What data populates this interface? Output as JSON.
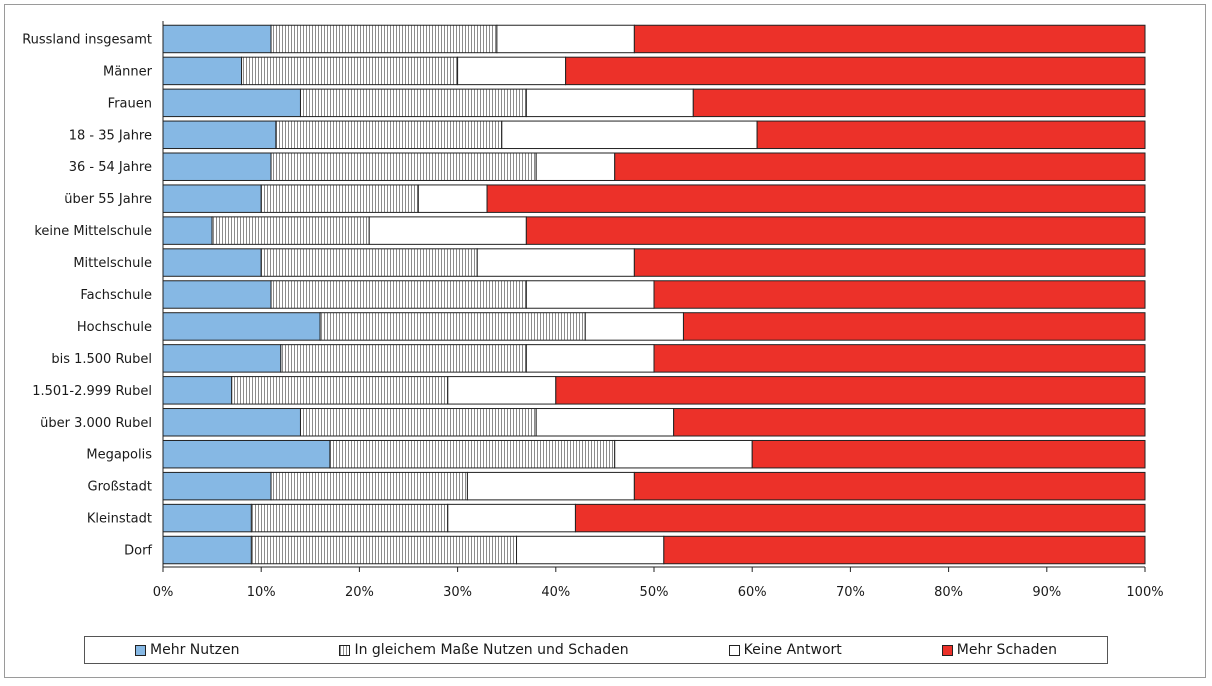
{
  "chart_data": {
    "type": "bar",
    "orientation": "horizontal",
    "stacked": true,
    "categories": [
      "Russland  insgesamt",
      "Männer",
      "Frauen",
      "18 - 35 Jahre",
      "36 - 54 Jahre",
      "über 55 Jahre",
      "keine Mittelschule",
      "Mittelschule",
      "Fachschule",
      "Hochschule",
      "bis 1.500 Rubel",
      "1.501-2.999 Rubel",
      "über 3.000 Rubel",
      "Megapolis",
      "Großstadt",
      "Kleinstadt",
      "Dorf"
    ],
    "series": [
      {
        "name": "Mehr Nutzen",
        "color": "#86b8e4",
        "pattern": "solid",
        "values": [
          11,
          8,
          14,
          11.5,
          11,
          10,
          5,
          10,
          11,
          16,
          12,
          7,
          14,
          17,
          11,
          9,
          9
        ]
      },
      {
        "name": "In gleichem Maße Nutzen und Schaden",
        "color": "#ffffff",
        "pattern": "vertical-stripes",
        "values": [
          23,
          22,
          23,
          23,
          27,
          16,
          16,
          22,
          26,
          27,
          25,
          22,
          24,
          29,
          20,
          20,
          27
        ]
      },
      {
        "name": "Keine Antwort",
        "color": "#ffffff",
        "pattern": "solid",
        "values": [
          14,
          11,
          17,
          26,
          8,
          7,
          16,
          16,
          13,
          10,
          13,
          11,
          14,
          14,
          17,
          13,
          15
        ]
      },
      {
        "name": "Mehr Schaden",
        "color": "#ec3129",
        "pattern": "solid",
        "values": [
          52,
          59,
          46,
          39.5,
          54,
          67,
          63,
          52,
          50,
          47,
          50,
          60,
          48,
          40,
          52,
          58,
          49
        ]
      }
    ],
    "xlim": [
      0,
      100
    ],
    "x_ticks": [
      "0%",
      "10%",
      "20%",
      "30%",
      "40%",
      "50%",
      "60%",
      "70%",
      "80%",
      "90%",
      "100%"
    ],
    "xlabel": "",
    "ylabel": "",
    "title": "",
    "grid": false,
    "legend_position": "bottom"
  }
}
